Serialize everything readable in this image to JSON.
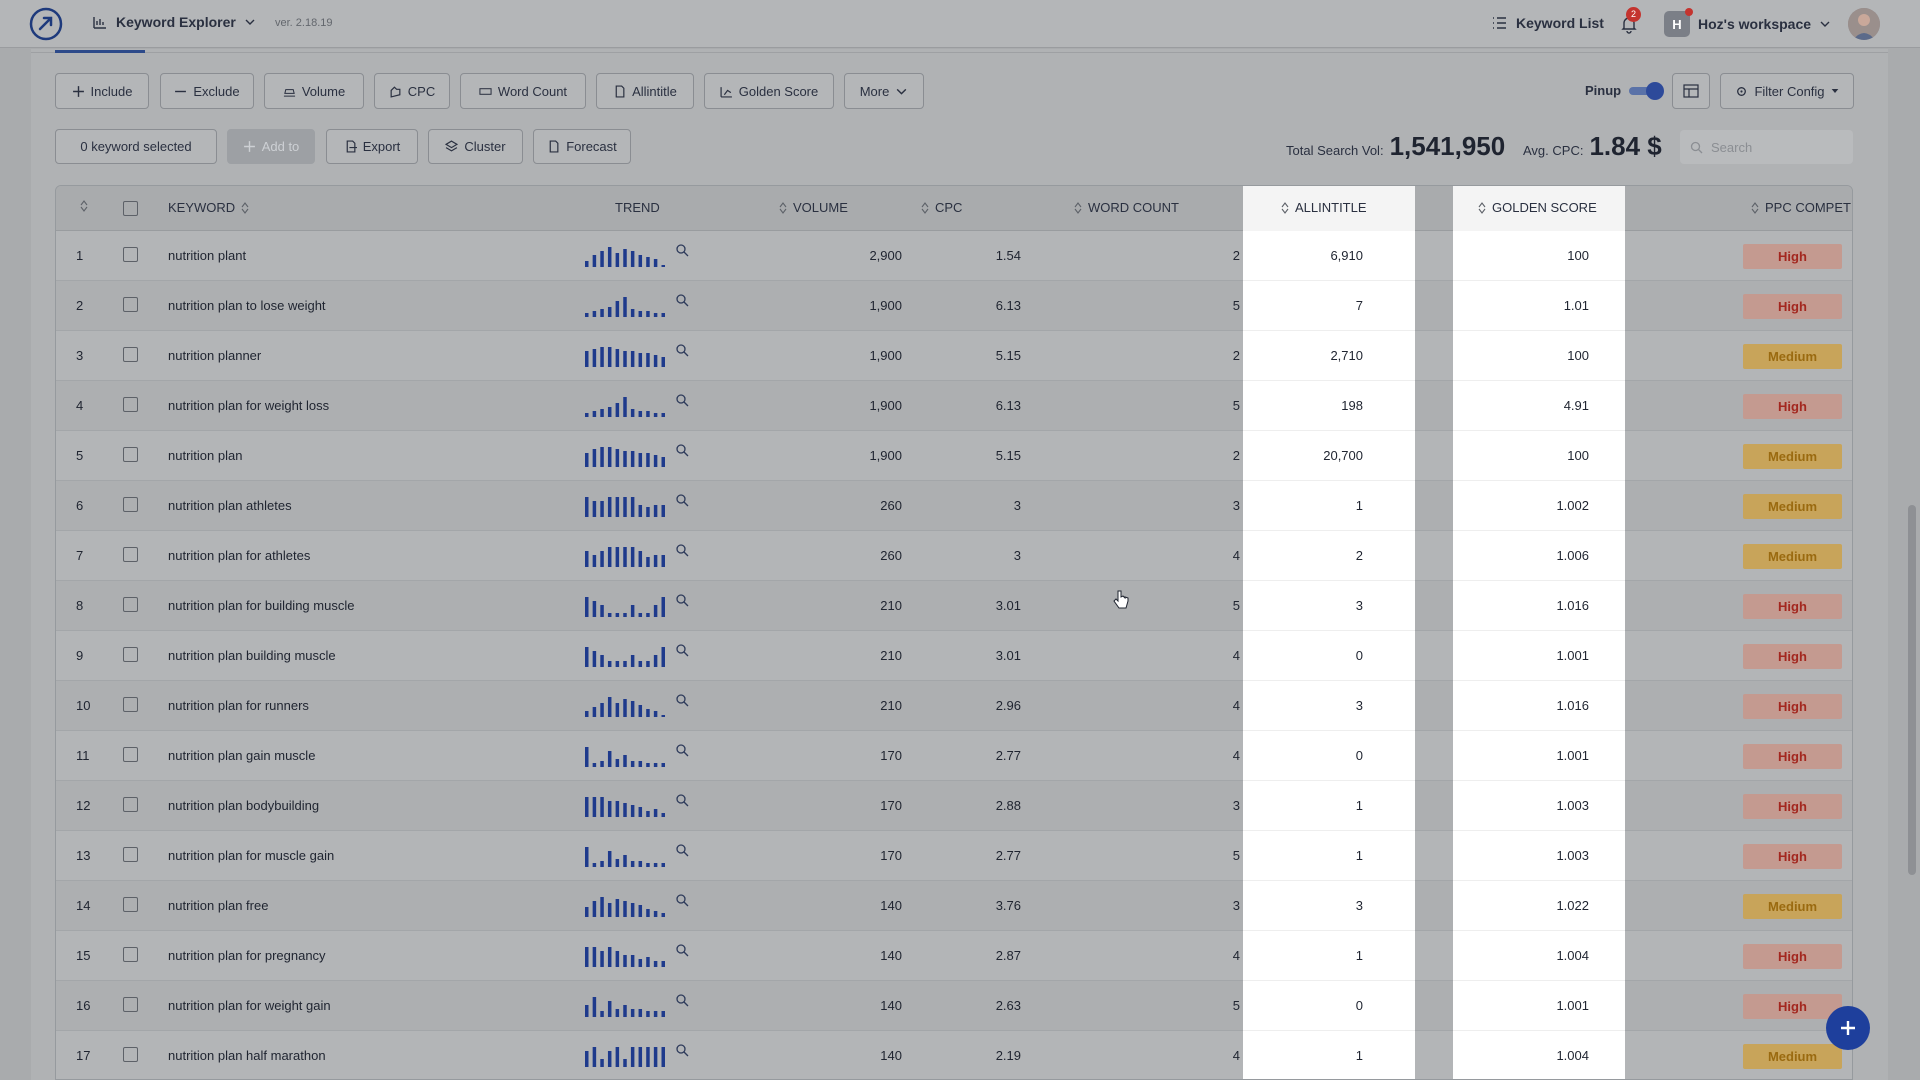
{
  "header": {
    "app_name": "Keyword Explorer",
    "version": "ver. 2.18.19",
    "keyword_list_label": "Keyword List",
    "notification_count": "2",
    "workspace_initial": "H",
    "workspace_name": "Hoz's workspace"
  },
  "filters": {
    "include": "Include",
    "exclude": "Exclude",
    "volume": "Volume",
    "cpc": "CPC",
    "word_count": "Word Count",
    "allintitle": "Allintitle",
    "golden_score": "Golden Score",
    "more": "More",
    "pinup_label": "Pinup",
    "filter_config": "Filter Config"
  },
  "actions": {
    "selected_text": "0 keyword selected",
    "add_to": "Add to",
    "export": "Export",
    "cluster": "Cluster",
    "forecast": "Forecast"
  },
  "stats": {
    "total_search_vol_label": "Total Search Vol:",
    "total_search_vol_value": "1,541,950",
    "avg_cpc_label": "Avg. CPC:",
    "avg_cpc_value": "1.84 $"
  },
  "search": {
    "placeholder": "Search"
  },
  "table": {
    "columns": {
      "keyword": "KEYWORD",
      "trend": "TREND",
      "volume": "VOLUME",
      "cpc": "CPC",
      "word_count": "WORD COUNT",
      "allintitle": "ALLINTITLE",
      "golden_score": "GOLDEN SCORE",
      "ppc_competition": "PPC COMPETITION"
    },
    "rows": [
      {
        "n": "1",
        "keyword": "nutrition plant",
        "volume": "2,900",
        "cpc": "1.54",
        "wc": "2",
        "allintitle": "6,910",
        "golden": "100",
        "ppc": "High",
        "trend": [
          3,
          6,
          8,
          10,
          7,
          9,
          8,
          6,
          5,
          4,
          1
        ]
      },
      {
        "n": "2",
        "keyword": "nutrition plan to lose weight",
        "volume": "1,900",
        "cpc": "6.13",
        "wc": "5",
        "allintitle": "7",
        "golden": "1.01",
        "ppc": "High",
        "trend": [
          2,
          3,
          4,
          5,
          8,
          10,
          4,
          3,
          3,
          2,
          2
        ]
      },
      {
        "n": "3",
        "keyword": "nutrition planner",
        "volume": "1,900",
        "cpc": "5.15",
        "wc": "2",
        "allintitle": "2,710",
        "golden": "100",
        "ppc": "Medium",
        "trend": [
          8,
          9,
          10,
          10,
          9,
          8,
          8,
          7,
          7,
          6,
          5
        ]
      },
      {
        "n": "4",
        "keyword": "nutrition plan for weight loss",
        "volume": "1,900",
        "cpc": "6.13",
        "wc": "5",
        "allintitle": "198",
        "golden": "4.91",
        "ppc": "High",
        "trend": [
          2,
          3,
          4,
          5,
          7,
          10,
          4,
          3,
          3,
          2,
          2
        ]
      },
      {
        "n": "5",
        "keyword": "nutrition plan",
        "volume": "1,900",
        "cpc": "5.15",
        "wc": "2",
        "allintitle": "20,700",
        "golden": "100",
        "ppc": "Medium",
        "trend": [
          7,
          9,
          10,
          10,
          9,
          8,
          8,
          7,
          7,
          6,
          5
        ]
      },
      {
        "n": "6",
        "keyword": "nutrition plan athletes",
        "volume": "260",
        "cpc": "3",
        "wc": "3",
        "allintitle": "1",
        "golden": "1.002",
        "ppc": "Medium",
        "trend": [
          10,
          8,
          8,
          10,
          10,
          10,
          10,
          6,
          5,
          6,
          6
        ]
      },
      {
        "n": "7",
        "keyword": "nutrition plan for athletes",
        "volume": "260",
        "cpc": "3",
        "wc": "4",
        "allintitle": "2",
        "golden": "1.006",
        "ppc": "Medium",
        "trend": [
          8,
          6,
          8,
          10,
          10,
          10,
          10,
          8,
          5,
          6,
          6
        ]
      },
      {
        "n": "8",
        "keyword": "nutrition plan for building muscle",
        "volume": "210",
        "cpc": "3.01",
        "wc": "5",
        "allintitle": "3",
        "golden": "1.016",
        "ppc": "High",
        "trend": [
          10,
          8,
          6,
          2,
          2,
          2,
          6,
          2,
          2,
          6,
          10
        ]
      },
      {
        "n": "9",
        "keyword": "nutrition plan building muscle",
        "volume": "210",
        "cpc": "3.01",
        "wc": "4",
        "allintitle": "0",
        "golden": "1.001",
        "ppc": "High",
        "trend": [
          10,
          8,
          6,
          3,
          3,
          3,
          6,
          3,
          3,
          6,
          10
        ]
      },
      {
        "n": "10",
        "keyword": "nutrition plan for runners",
        "volume": "210",
        "cpc": "2.96",
        "wc": "4",
        "allintitle": "3",
        "golden": "1.016",
        "ppc": "High",
        "trend": [
          3,
          5,
          7,
          10,
          7,
          9,
          8,
          6,
          4,
          3,
          1
        ]
      },
      {
        "n": "11",
        "keyword": "nutrition plan gain muscle",
        "volume": "170",
        "cpc": "2.77",
        "wc": "4",
        "allintitle": "0",
        "golden": "1.001",
        "ppc": "High",
        "trend": [
          10,
          2,
          3,
          8,
          4,
          6,
          3,
          3,
          2,
          2,
          2
        ]
      },
      {
        "n": "12",
        "keyword": "nutrition plan bodybuilding",
        "volume": "170",
        "cpc": "2.88",
        "wc": "3",
        "allintitle": "1",
        "golden": "1.003",
        "ppc": "High",
        "trend": [
          10,
          10,
          10,
          8,
          8,
          7,
          6,
          5,
          3,
          4,
          2
        ]
      },
      {
        "n": "13",
        "keyword": "nutrition plan for muscle gain",
        "volume": "170",
        "cpc": "2.77",
        "wc": "5",
        "allintitle": "1",
        "golden": "1.003",
        "ppc": "High",
        "trend": [
          10,
          2,
          3,
          8,
          4,
          6,
          3,
          3,
          2,
          2,
          2
        ]
      },
      {
        "n": "14",
        "keyword": "nutrition plan free",
        "volume": "140",
        "cpc": "3.76",
        "wc": "3",
        "allintitle": "3",
        "golden": "1.022",
        "ppc": "Medium",
        "trend": [
          5,
          8,
          10,
          7,
          9,
          8,
          7,
          6,
          4,
          3,
          2
        ]
      },
      {
        "n": "15",
        "keyword": "nutrition plan for pregnancy",
        "volume": "140",
        "cpc": "2.87",
        "wc": "4",
        "allintitle": "1",
        "golden": "1.004",
        "ppc": "High",
        "trend": [
          10,
          10,
          8,
          10,
          8,
          6,
          6,
          4,
          5,
          3,
          3
        ]
      },
      {
        "n": "16",
        "keyword": "nutrition plan for weight gain",
        "volume": "140",
        "cpc": "2.63",
        "wc": "5",
        "allintitle": "0",
        "golden": "1.001",
        "ppc": "High",
        "trend": [
          6,
          10,
          3,
          8,
          4,
          6,
          4,
          4,
          3,
          3,
          3
        ]
      },
      {
        "n": "17",
        "keyword": "nutrition plan half marathon",
        "volume": "140",
        "cpc": "2.19",
        "wc": "4",
        "allintitle": "1",
        "golden": "1.004",
        "ppc": "Medium",
        "trend": [
          8,
          10,
          4,
          8,
          10,
          4,
          10,
          10,
          10,
          10,
          10
        ]
      }
    ]
  },
  "colors": {
    "accent": "#2d4a9a",
    "trend_bar": "#1e3a8c",
    "high_text": "#a3271f",
    "medium_text": "#9a6a10"
  }
}
